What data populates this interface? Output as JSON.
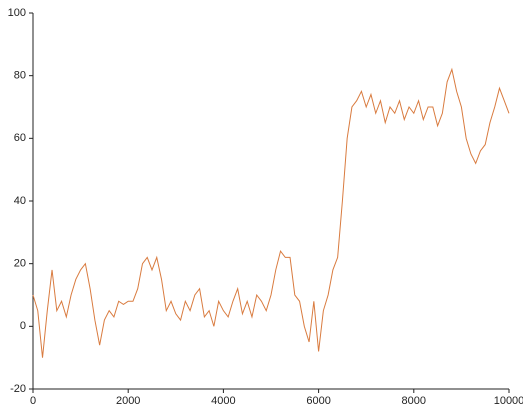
{
  "chart_data": {
    "type": "line",
    "x": [
      0,
      100,
      200,
      300,
      400,
      500,
      600,
      700,
      800,
      900,
      1000,
      1100,
      1200,
      1300,
      1400,
      1500,
      1600,
      1700,
      1800,
      1900,
      2000,
      2100,
      2200,
      2300,
      2400,
      2500,
      2600,
      2700,
      2800,
      2900,
      3000,
      3100,
      3200,
      3300,
      3400,
      3500,
      3600,
      3700,
      3800,
      3900,
      4000,
      4100,
      4200,
      4300,
      4400,
      4500,
      4600,
      4700,
      4800,
      4900,
      5000,
      5100,
      5200,
      5300,
      5400,
      5500,
      5600,
      5700,
      5800,
      5900,
      6000,
      6100,
      6200,
      6300,
      6400,
      6500,
      6600,
      6700,
      6800,
      6900,
      7000,
      7100,
      7200,
      7300,
      7400,
      7500,
      7600,
      7700,
      7800,
      7900,
      8000,
      8100,
      8200,
      8300,
      8400,
      8500,
      8600,
      8700,
      8800,
      8900,
      9000,
      9100,
      9200,
      9300,
      9400,
      9500,
      9600,
      9700,
      9800,
      9900,
      10000
    ],
    "series": [
      {
        "color": "#d97b3f",
        "values": [
          10,
          5,
          -10,
          5,
          18,
          5,
          8,
          3,
          10,
          15,
          18,
          20,
          12,
          2,
          -6,
          2,
          5,
          3,
          8,
          7,
          8,
          8,
          12,
          20,
          22,
          18,
          22,
          15,
          5,
          8,
          4,
          2,
          8,
          5,
          10,
          12,
          3,
          5,
          0,
          8,
          5,
          3,
          8,
          12,
          4,
          8,
          3,
          10,
          8,
          5,
          10,
          18,
          24,
          22,
          22,
          10,
          8,
          0,
          -5,
          8,
          -8,
          5,
          10,
          18,
          22,
          40,
          60,
          70,
          72,
          75,
          70,
          74,
          68,
          72,
          65,
          70,
          68,
          72,
          66,
          70,
          68,
          72,
          66,
          70,
          70,
          64,
          68,
          78,
          82,
          75,
          70,
          60,
          55,
          52,
          56,
          58,
          65,
          70,
          76,
          72,
          68
        ]
      }
    ],
    "xlim": [
      0,
      10000
    ],
    "ylim": [
      -20,
      100
    ],
    "xticks": [
      0,
      2000,
      4000,
      6000,
      8000,
      10000
    ],
    "yticks": [
      -20,
      0,
      20,
      40,
      60,
      80,
      100
    ]
  }
}
